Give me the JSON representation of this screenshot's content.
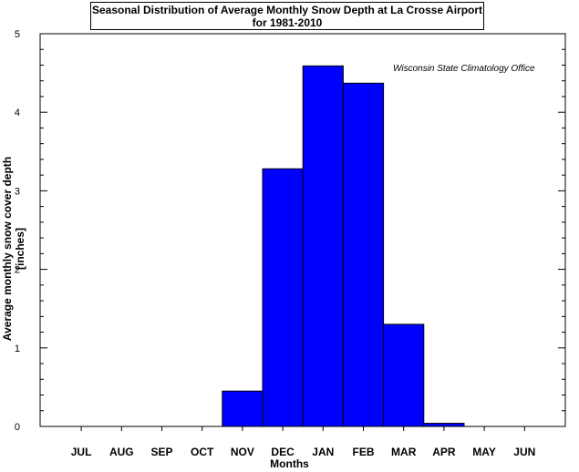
{
  "chart_data": {
    "type": "bar",
    "title_line1": "Seasonal Distribution of Average Monthly Snow Depth at La Crosse Airport",
    "title_line2": "for 1981-2010",
    "credit": "Wisconsin State Climatology Office",
    "xlabel": "Months",
    "ylabel": "Average monthly snow cover depth [inches]",
    "categories": [
      "JUL",
      "AUG",
      "SEP",
      "OCT",
      "NOV",
      "DEC",
      "JAN",
      "FEB",
      "MAR",
      "APR",
      "MAY",
      "JUN"
    ],
    "values": [
      0,
      0,
      0,
      0,
      0.45,
      3.28,
      4.59,
      4.37,
      1.3,
      0.04,
      0,
      0
    ],
    "ylim": [
      0,
      5
    ],
    "yticks": [
      0,
      1,
      2,
      3,
      4,
      5
    ],
    "bar_color": "#0000ff",
    "grid": false
  }
}
